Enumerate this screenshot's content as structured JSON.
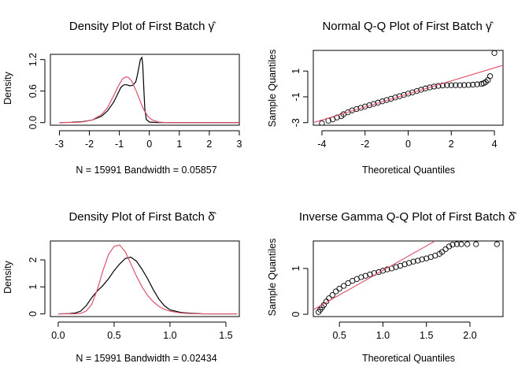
{
  "chart_data": [
    {
      "type": "line",
      "title": "Density Plot of First Batch",
      "title_symbol": "γ̂",
      "xlabel": "N = 15991   Bandwidth = 0.05857",
      "ylabel": "Density",
      "xlim": [
        -3.3,
        3.0
      ],
      "ylim": [
        -0.05,
        1.3
      ],
      "xticks": [
        -3,
        -2,
        -1,
        0,
        1,
        2,
        3
      ],
      "yticks": [
        0.0,
        0.6,
        1.2
      ],
      "series": [
        {
          "color": "#000000",
          "x": [
            -3.0,
            -2.6,
            -2.2,
            -1.9,
            -1.6,
            -1.4,
            -1.2,
            -1.05,
            -0.95,
            -0.85,
            -0.75,
            -0.65,
            -0.55,
            -0.45,
            -0.4,
            -0.35,
            -0.3,
            -0.25,
            -0.22,
            -0.18,
            -0.15,
            -0.1,
            0.0,
            0.3,
            3.0
          ],
          "y": [
            0.0,
            0.005,
            0.02,
            0.05,
            0.12,
            0.22,
            0.38,
            0.55,
            0.67,
            0.72,
            0.72,
            0.7,
            0.71,
            0.78,
            0.9,
            1.05,
            1.2,
            1.24,
            1.1,
            0.6,
            0.25,
            0.06,
            0.01,
            0.0,
            0.0
          ]
        },
        {
          "color": "#DF536B",
          "x": [
            -3.0,
            -2.5,
            -2.2,
            -1.9,
            -1.6,
            -1.4,
            -1.2,
            -1.05,
            -0.9,
            -0.78,
            -0.7,
            -0.6,
            -0.45,
            -0.3,
            -0.2,
            -0.05,
            0.1,
            0.3,
            0.6,
            3.0
          ],
          "y": [
            0.0,
            0.003,
            0.015,
            0.05,
            0.15,
            0.28,
            0.5,
            0.68,
            0.83,
            0.87,
            0.86,
            0.8,
            0.62,
            0.4,
            0.26,
            0.12,
            0.05,
            0.01,
            0.0,
            0.0
          ]
        }
      ]
    },
    {
      "type": "scatter",
      "title": "Normal Q-Q Plot of First Batch",
      "title_symbol": "γ̂",
      "xlabel": "Theoretical Quantiles",
      "ylabel": "Sample Quantiles",
      "xlim": [
        -4.4,
        4.4
      ],
      "ylim": [
        -3.2,
        2.6
      ],
      "xticks": [
        -4,
        -2,
        0,
        2,
        4
      ],
      "yticks": [
        -3,
        -1,
        1
      ],
      "points_x": [
        -4.0,
        -3.7,
        -3.5,
        -3.3,
        -3.1,
        -3.0,
        -2.8,
        -2.6,
        -2.4,
        -2.2,
        -2.0,
        -1.8,
        -1.6,
        -1.4,
        -1.2,
        -1.0,
        -0.8,
        -0.6,
        -0.4,
        -0.2,
        0.0,
        0.2,
        0.4,
        0.6,
        0.8,
        1.0,
        1.2,
        1.4,
        1.6,
        1.8,
        2.0,
        2.2,
        2.4,
        2.6,
        2.8,
        3.0,
        3.2,
        3.4,
        3.5,
        3.6,
        3.7,
        3.8,
        4.0
      ],
      "points_y": [
        -3.05,
        -2.85,
        -2.75,
        -2.6,
        -2.5,
        -2.35,
        -2.2,
        -2.05,
        -1.95,
        -1.85,
        -1.75,
        -1.65,
        -1.55,
        -1.45,
        -1.35,
        -1.25,
        -1.15,
        -1.05,
        -0.95,
        -0.85,
        -0.75,
        -0.65,
        -0.55,
        -0.45,
        -0.35,
        -0.27,
        -0.2,
        -0.15,
        -0.12,
        -0.1,
        -0.1,
        -0.1,
        -0.1,
        -0.09,
        -0.08,
        -0.06,
        -0.03,
        0.0,
        0.05,
        0.15,
        0.3,
        0.6,
        2.4
      ],
      "ref_line": {
        "x": [
          -4.4,
          4.4
        ],
        "y": [
          -3.0,
          1.45
        ],
        "color": "#DF536B"
      }
    },
    {
      "type": "line",
      "title": "Density Plot of First Batch",
      "title_symbol": "δ̂",
      "xlabel": "N = 15991   Bandwidth = 0.02434",
      "ylabel": "Density",
      "xlim": [
        -0.07,
        1.62
      ],
      "ylim": [
        -0.1,
        2.7
      ],
      "xticks": [
        0.0,
        0.5,
        1.0,
        1.5
      ],
      "yticks": [
        0.0,
        1.0,
        2.0
      ],
      "series": [
        {
          "color": "#000000",
          "x": [
            0.0,
            0.1,
            0.15,
            0.2,
            0.25,
            0.3,
            0.35,
            0.4,
            0.45,
            0.5,
            0.55,
            0.6,
            0.65,
            0.7,
            0.75,
            0.8,
            0.85,
            0.9,
            0.95,
            1.0,
            1.1,
            1.2,
            1.3,
            1.6
          ],
          "y": [
            0.0,
            0.01,
            0.03,
            0.1,
            0.3,
            0.6,
            0.85,
            1.05,
            1.3,
            1.6,
            1.85,
            2.05,
            2.1,
            1.95,
            1.65,
            1.3,
            0.9,
            0.55,
            0.3,
            0.15,
            0.05,
            0.02,
            0.0,
            0.0
          ]
        },
        {
          "color": "#DF536B",
          "x": [
            0.0,
            0.15,
            0.2,
            0.25,
            0.3,
            0.35,
            0.4,
            0.45,
            0.5,
            0.55,
            0.6,
            0.65,
            0.7,
            0.75,
            0.8,
            0.85,
            0.9,
            0.95,
            1.0,
            1.1,
            1.2,
            1.3,
            1.6
          ],
          "y": [
            0.0,
            0.0,
            0.02,
            0.1,
            0.35,
            0.9,
            1.6,
            2.2,
            2.5,
            2.55,
            2.3,
            1.85,
            1.4,
            1.0,
            0.68,
            0.45,
            0.28,
            0.17,
            0.1,
            0.03,
            0.01,
            0.0,
            0.0
          ]
        }
      ]
    },
    {
      "type": "scatter",
      "title": "Inverse Gamma Q-Q Plot of First Batch",
      "title_symbol": "δ̂",
      "xlabel": "Theoretical Quantiles",
      "ylabel": "Sample Quantiles",
      "xlim": [
        0.2,
        2.38
      ],
      "ylim": [
        -0.05,
        1.6
      ],
      "xticks": [
        0.5,
        1.0,
        1.5,
        2.0
      ],
      "yticks": [
        0.0,
        1.0
      ],
      "points_x": [
        0.26,
        0.28,
        0.3,
        0.32,
        0.35,
        0.38,
        0.42,
        0.46,
        0.5,
        0.55,
        0.6,
        0.65,
        0.7,
        0.75,
        0.8,
        0.85,
        0.9,
        0.95,
        1.0,
        1.05,
        1.1,
        1.15,
        1.2,
        1.25,
        1.3,
        1.35,
        1.4,
        1.45,
        1.5,
        1.55,
        1.6,
        1.65,
        1.68,
        1.72,
        1.76,
        1.8,
        1.85,
        1.9,
        1.97,
        2.07,
        2.31
      ],
      "points_y": [
        0.05,
        0.1,
        0.15,
        0.2,
        0.28,
        0.35,
        0.42,
        0.5,
        0.56,
        0.62,
        0.68,
        0.73,
        0.77,
        0.81,
        0.84,
        0.87,
        0.9,
        0.92,
        0.95,
        0.98,
        1.0,
        1.03,
        1.06,
        1.09,
        1.12,
        1.15,
        1.17,
        1.2,
        1.22,
        1.25,
        1.28,
        1.32,
        1.36,
        1.42,
        1.48,
        1.52,
        1.53,
        1.53,
        1.53,
        1.53,
        1.53
      ],
      "ref_line": {
        "x": [
          0.2,
          1.6
        ],
        "y": [
          0.1,
          1.6
        ],
        "color": "#DF536B"
      }
    }
  ]
}
